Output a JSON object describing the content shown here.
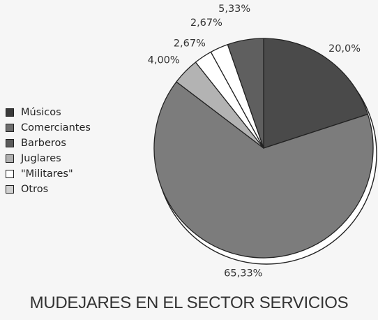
{
  "chart_data": {
    "type": "pie",
    "title": "MUDEJARES EN EL SECTOR SERVICIOS",
    "slices": [
      {
        "label": "Músicos",
        "value": 20.0,
        "value_label": "20,0%",
        "color": "#4a4a4a"
      },
      {
        "label": "Comerciantes",
        "value": 65.33,
        "value_label": "65,33%",
        "color": "#7c7c7c"
      },
      {
        "label": "Barberos",
        "value": 0,
        "value_label": "",
        "color": "#555555"
      },
      {
        "label": "Juglares",
        "value": 4.0,
        "value_label": "4,00%",
        "color": "#b3b3b3"
      },
      {
        "label": "\"Militares\"",
        "value": 2.67,
        "value_label": "2,67%",
        "color": "#ffffff"
      },
      {
        "label": "Otros",
        "value": 2.67,
        "value_label": "2,67%",
        "color": "#ffffff"
      },
      {
        "label": "",
        "value": 5.33,
        "value_label": "5,33%",
        "color": "#5f5f5f"
      }
    ],
    "legend": [
      {
        "label": "Músicos",
        "color": "#3a3a3a"
      },
      {
        "label": "Comerciantes",
        "color": "#6e6e6e"
      },
      {
        "label": "Barberos",
        "color": "#5a5a5a"
      },
      {
        "label": "Juglares",
        "color": "#b0b0b0"
      },
      {
        "label": "\"Militares\"",
        "color": "#ffffff"
      },
      {
        "label": "Otros",
        "color": "#d0d0d0"
      }
    ],
    "legend_position": "left"
  }
}
